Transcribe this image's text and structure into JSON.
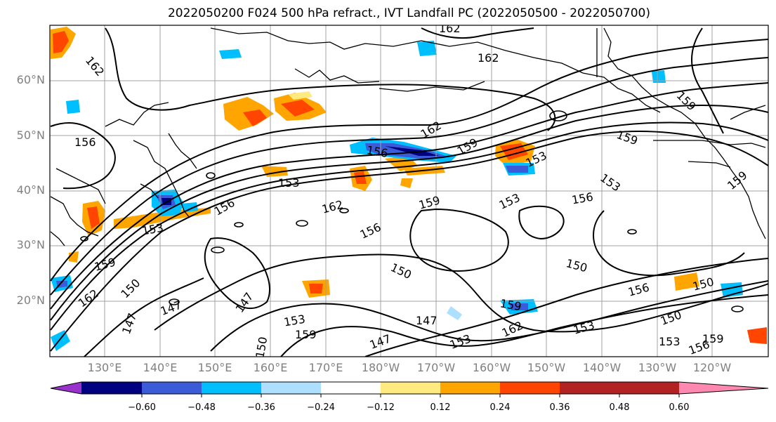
{
  "title": "2022050200 F024 500 hPa refract., IVT Landfall PC (2022050500 - 2022050700)",
  "map": {
    "lat_labels": [
      "60°N",
      "50°N",
      "40°N",
      "30°N",
      "20°N"
    ],
    "lon_labels": [
      "130°E",
      "140°E",
      "150°E",
      "160°E",
      "170°E",
      "180°W",
      "170°W",
      "160°W",
      "150°W",
      "140°W",
      "130°W",
      "120°W"
    ],
    "contour_values": [
      147,
      150,
      153,
      156,
      159,
      162
    ],
    "contour_labels": [
      {
        "text": "162"
      },
      {
        "text": "162"
      },
      {
        "text": "162"
      },
      {
        "text": "156"
      },
      {
        "text": "156"
      },
      {
        "text": "159"
      },
      {
        "text": "162"
      },
      {
        "text": "159"
      },
      {
        "text": "153"
      },
      {
        "text": "159"
      },
      {
        "text": "153"
      },
      {
        "text": "156"
      },
      {
        "text": "162"
      },
      {
        "text": "153"
      },
      {
        "text": "159"
      },
      {
        "text": "156"
      },
      {
        "text": "153"
      },
      {
        "text": "156"
      },
      {
        "text": "153"
      },
      {
        "text": "150"
      },
      {
        "text": "150"
      },
      {
        "text": "147"
      },
      {
        "text": "147"
      },
      {
        "text": "147"
      },
      {
        "text": "153"
      },
      {
        "text": "159"
      },
      {
        "text": "150"
      },
      {
        "text": "147"
      },
      {
        "text": "153"
      },
      {
        "text": "162"
      },
      {
        "text": "159"
      },
      {
        "text": "153"
      },
      {
        "text": "150"
      },
      {
        "text": "156"
      },
      {
        "text": "150"
      },
      {
        "text": "147"
      },
      {
        "text": "153"
      },
      {
        "text": "156"
      },
      {
        "text": "159"
      },
      {
        "text": "159"
      },
      {
        "text": "159"
      },
      {
        "text": "162"
      },
      {
        "text": "150"
      }
    ]
  },
  "colorbar": {
    "ticks": [
      "−0.60",
      "−0.48",
      "−0.36",
      "−0.24",
      "−0.12",
      "0.12",
      "0.24",
      "0.36",
      "0.48",
      "0.60"
    ],
    "colors": [
      "#9932CC",
      "#000080",
      "#3B5BD8",
      "#00BFFF",
      "#ADE0FF",
      "#FFFFFF",
      "#FFEA7F",
      "#FFA500",
      "#FF4500",
      "#B22222",
      "#FF88B0"
    ]
  },
  "colors": {
    "gridline": "#a0a0a0",
    "contour": "#000000",
    "coastline": "#000000",
    "axis_label": "#808080"
  }
}
